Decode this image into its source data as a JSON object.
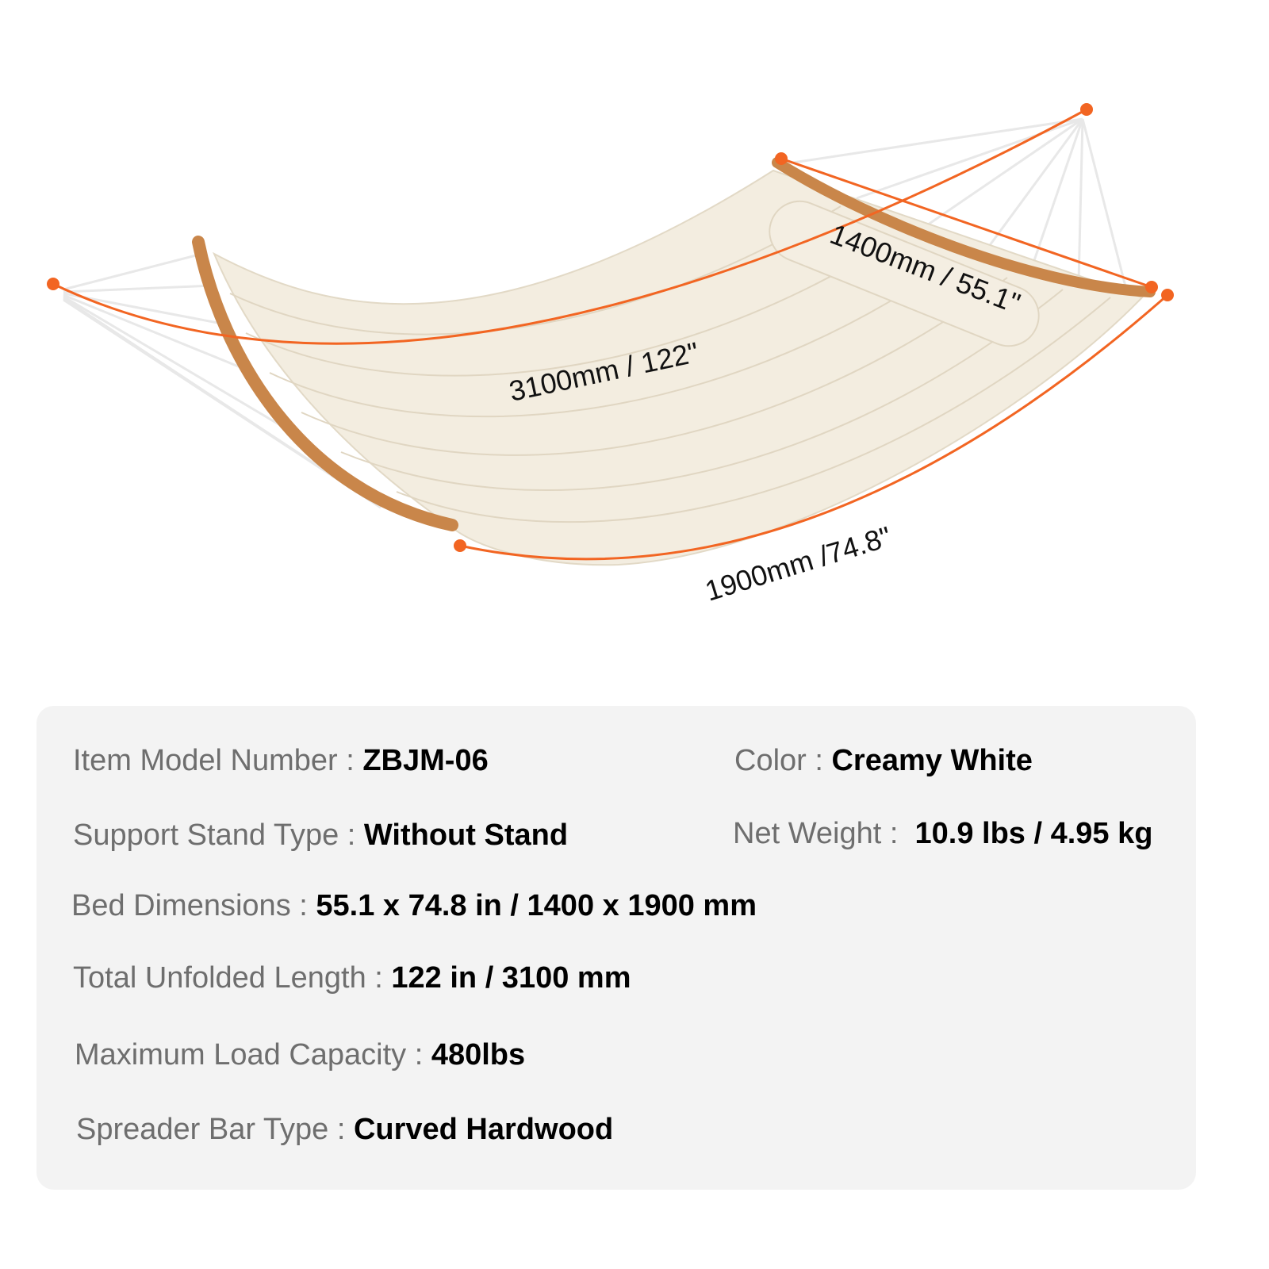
{
  "dimensions": {
    "total_length": "3100mm / 122\"",
    "width": "1400mm / 55.1\"",
    "bed_length": "1900mm /74.8\""
  },
  "colors": {
    "accent": "#f26522",
    "fabric": "#f3ede0",
    "wood": "#c9864a",
    "panel": "#f3f3f3"
  },
  "specs": [
    {
      "label": "Item Model Number : ",
      "value": "ZBJM-06"
    },
    {
      "label": "Color : ",
      "value": "Creamy White"
    },
    {
      "label": "Support Stand Type : ",
      "value": "Without Stand"
    },
    {
      "label": "Net Weight :  ",
      "value": "10.9 lbs / 4.95 kg"
    },
    {
      "label": "Bed Dimensions : ",
      "value": "55.1 x 74.8 in / 1400 x 1900 mm"
    },
    {
      "label": "Total Unfolded Length : ",
      "value": "122 in / 3100 mm"
    },
    {
      "label": "Maximum Load Capacity : ",
      "value": "480lbs"
    },
    {
      "label": "Spreader Bar Type : ",
      "value": "Curved Hardwood"
    }
  ]
}
